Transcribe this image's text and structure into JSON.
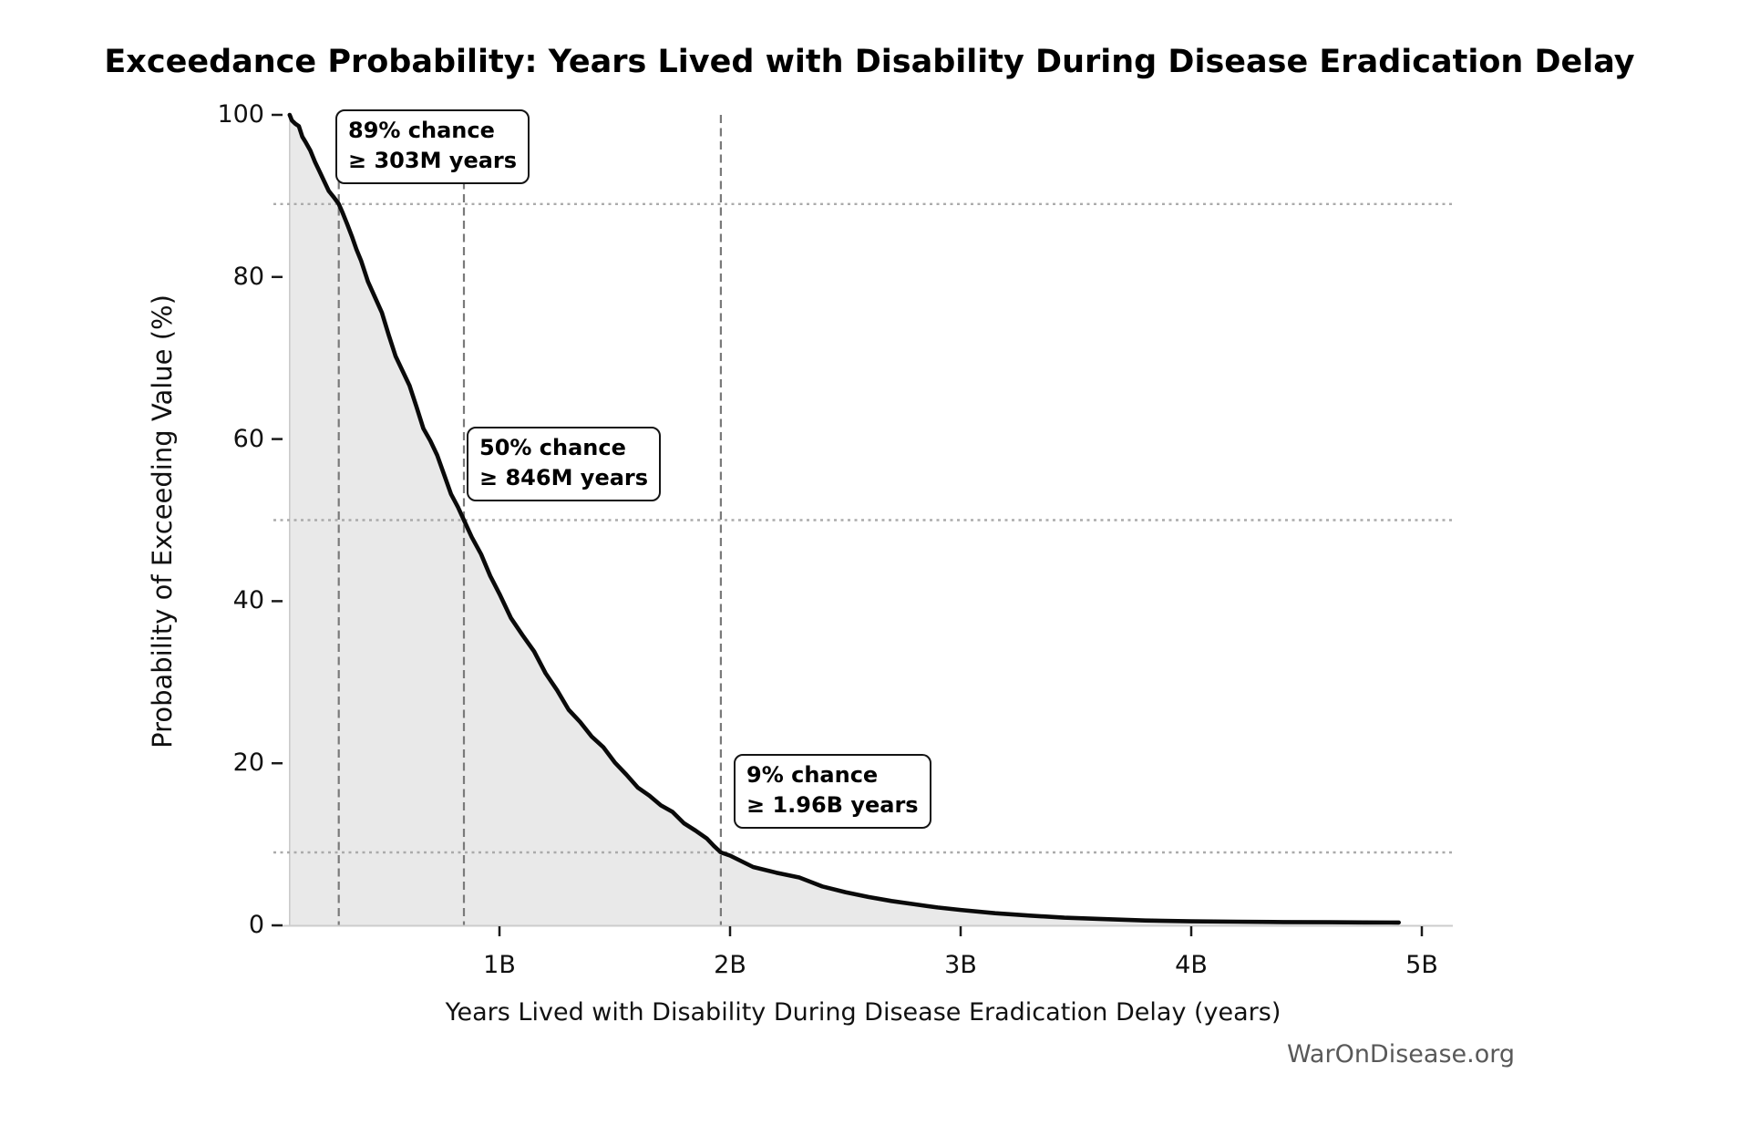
{
  "title": "Exceedance Probability: Years Lived with Disability During Disease Eradication Delay",
  "watermark": "WarOnDisease.org",
  "chart_data": {
    "type": "line",
    "title": "Exceedance Probability: Years Lived with Disability During Disease Eradication Delay",
    "xlabel": "Years Lived with Disability During Disease Eradication Delay (years)",
    "ylabel": "Probability of Exceeding Value (%)",
    "xlim_billion_years": [
      0,
      5.13
    ],
    "ylim": [
      0,
      100
    ],
    "grid": "dotted horizontal reference lines at annotated exceedance probabilities",
    "legend_position": "none",
    "xtick_values_billion": [
      1,
      2,
      3,
      4,
      5
    ],
    "xtick_labels": [
      "1B",
      "2B",
      "3B",
      "4B",
      "5B"
    ],
    "ytick_values": [
      0,
      20,
      40,
      60,
      80,
      100
    ],
    "ytick_labels": [
      "0",
      "20",
      "40",
      "60",
      "80",
      "100"
    ],
    "series": [
      {
        "name": "exceedance-probability-curve",
        "color": "#0a0a0a",
        "fill_color": "#e9e9e9",
        "points_x_billion_years_y_percent": [
          [
            0.09,
            100
          ],
          [
            0.1,
            99.3
          ],
          [
            0.115,
            98.9
          ],
          [
            0.13,
            98.6
          ],
          [
            0.145,
            97.3
          ],
          [
            0.16,
            96.6
          ],
          [
            0.18,
            95.6
          ],
          [
            0.2,
            94.2
          ],
          [
            0.22,
            93
          ],
          [
            0.24,
            91.8
          ],
          [
            0.26,
            90.6
          ],
          [
            0.28,
            89.9
          ],
          [
            0.303,
            89
          ],
          [
            0.32,
            87.9
          ],
          [
            0.34,
            86.5
          ],
          [
            0.36,
            85
          ],
          [
            0.38,
            83.4
          ],
          [
            0.4,
            82
          ],
          [
            0.43,
            79.4
          ],
          [
            0.46,
            77.5
          ],
          [
            0.49,
            75.6
          ],
          [
            0.52,
            72.8
          ],
          [
            0.55,
            70.2
          ],
          [
            0.58,
            68.4
          ],
          [
            0.61,
            66.6
          ],
          [
            0.64,
            64
          ],
          [
            0.67,
            61.3
          ],
          [
            0.7,
            59.8
          ],
          [
            0.73,
            58
          ],
          [
            0.76,
            55.6
          ],
          [
            0.79,
            53.2
          ],
          [
            0.82,
            51.6
          ],
          [
            0.846,
            50
          ],
          [
            0.88,
            47.9
          ],
          [
            0.92,
            45.8
          ],
          [
            0.96,
            43.1
          ],
          [
            1,
            40.9
          ],
          [
            1.05,
            37.9
          ],
          [
            1.1,
            35.8
          ],
          [
            1.15,
            33.8
          ],
          [
            1.2,
            31.1
          ],
          [
            1.25,
            29
          ],
          [
            1.3,
            26.6
          ],
          [
            1.35,
            25.1
          ],
          [
            1.4,
            23.3
          ],
          [
            1.45,
            22
          ],
          [
            1.5,
            20.1
          ],
          [
            1.55,
            18.6
          ],
          [
            1.6,
            17
          ],
          [
            1.65,
            16
          ],
          [
            1.7,
            14.8
          ],
          [
            1.75,
            14
          ],
          [
            1.8,
            12.6
          ],
          [
            1.85,
            11.7
          ],
          [
            1.9,
            10.7
          ],
          [
            1.93,
            9.8
          ],
          [
            1.96,
            9
          ],
          [
            2,
            8.6
          ],
          [
            2.1,
            7.2
          ],
          [
            2.2,
            6.5
          ],
          [
            2.3,
            5.9
          ],
          [
            2.4,
            4.8
          ],
          [
            2.5,
            4.1
          ],
          [
            2.6,
            3.5
          ],
          [
            2.7,
            3
          ],
          [
            2.8,
            2.6
          ],
          [
            2.9,
            2.2
          ],
          [
            3,
            1.9
          ],
          [
            3.15,
            1.5
          ],
          [
            3.3,
            1.2
          ],
          [
            3.45,
            0.95
          ],
          [
            3.6,
            0.8
          ],
          [
            3.8,
            0.6
          ],
          [
            4,
            0.5
          ],
          [
            4.2,
            0.45
          ],
          [
            4.4,
            0.4
          ],
          [
            4.6,
            0.38
          ],
          [
            4.75,
            0.36
          ],
          [
            4.9,
            0.35
          ]
        ]
      }
    ],
    "annotations": [
      {
        "line1": "89% chance",
        "line2": "≥ 303M years",
        "probability_pct": 89,
        "threshold_label": "303M",
        "x_value_billion": 0.303
      },
      {
        "line1": "50% chance",
        "line2": "≥ 846M years",
        "probability_pct": 50,
        "threshold_label": "846M",
        "x_value_billion": 0.846
      },
      {
        "line1": "9% chance",
        "line2": "≥ 1.96B years",
        "probability_pct": 9,
        "threshold_label": "1.96B",
        "x_value_billion": 1.96
      }
    ],
    "watermark": "WarOnDisease.org",
    "styles": {
      "curve_color": "#0a0a0a",
      "fill_color": "#e9e9e9",
      "dashed_line_color": "#7a7a7a",
      "dotted_line_color": "#ababab",
      "axis_spine_color": "#cccccc",
      "tick_color": "#1a1a1a",
      "watermark_color": "#595959"
    }
  }
}
